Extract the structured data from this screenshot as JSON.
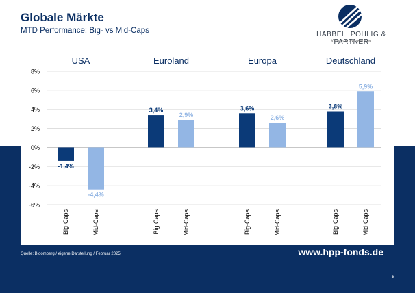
{
  "header": {
    "title": "Globale Märkte",
    "subtitle": "MTD Performance: Big- vs Mid-Caps"
  },
  "logo": {
    "name": "HABBEL, POHLIG & PARTNER",
    "sub": "Vermögensverwaltung"
  },
  "footer": {
    "source": "Quelle: Bloomberg / eigene Darstellung / Februar 2025",
    "website": "www.hpp-fonds.de",
    "page_number": "8"
  },
  "colors": {
    "navy": "#0b2f63",
    "big_caps": "#0b3a78",
    "mid_caps": "#93b6e4",
    "grid": "#d9d9d9"
  },
  "chart_data": {
    "type": "bar",
    "groups": [
      {
        "region": "USA",
        "bars": [
          {
            "label": "Big-Caps",
            "value": -1.4,
            "display": "-1,4%",
            "series": "big"
          },
          {
            "label": "Mid-Caps",
            "value": -4.4,
            "display": "-4,4%",
            "series": "mid"
          }
        ]
      },
      {
        "region": "Euroland",
        "bars": [
          {
            "label": "Big Caps",
            "value": 3.4,
            "display": "3,4%",
            "series": "big"
          },
          {
            "label": "Mid-Caps",
            "value": 2.9,
            "display": "2,9%",
            "series": "mid"
          }
        ]
      },
      {
        "region": "Europa",
        "bars": [
          {
            "label": "Big-Caps",
            "value": 3.6,
            "display": "3,6%",
            "series": "big"
          },
          {
            "label": "Mid-Caps",
            "value": 2.6,
            "display": "2,6%",
            "series": "mid"
          }
        ]
      },
      {
        "region": "Deutschland",
        "bars": [
          {
            "label": "Big-Caps",
            "value": 3.8,
            "display": "3,8%",
            "series": "big"
          },
          {
            "label": "Mid-Caps",
            "value": 5.9,
            "display": "5,9%",
            "series": "mid"
          }
        ]
      }
    ],
    "y_ticks": [
      {
        "value": 8,
        "label": "8%"
      },
      {
        "value": 6,
        "label": "6%"
      },
      {
        "value": 4,
        "label": "4%"
      },
      {
        "value": 2,
        "label": "2%"
      },
      {
        "value": 0,
        "label": "0%"
      },
      {
        "value": -2,
        "label": "-2%"
      },
      {
        "value": -4,
        "label": "-4%"
      },
      {
        "value": -6,
        "label": "-6%"
      }
    ],
    "ylim": [
      -6,
      8
    ],
    "grid": true
  }
}
